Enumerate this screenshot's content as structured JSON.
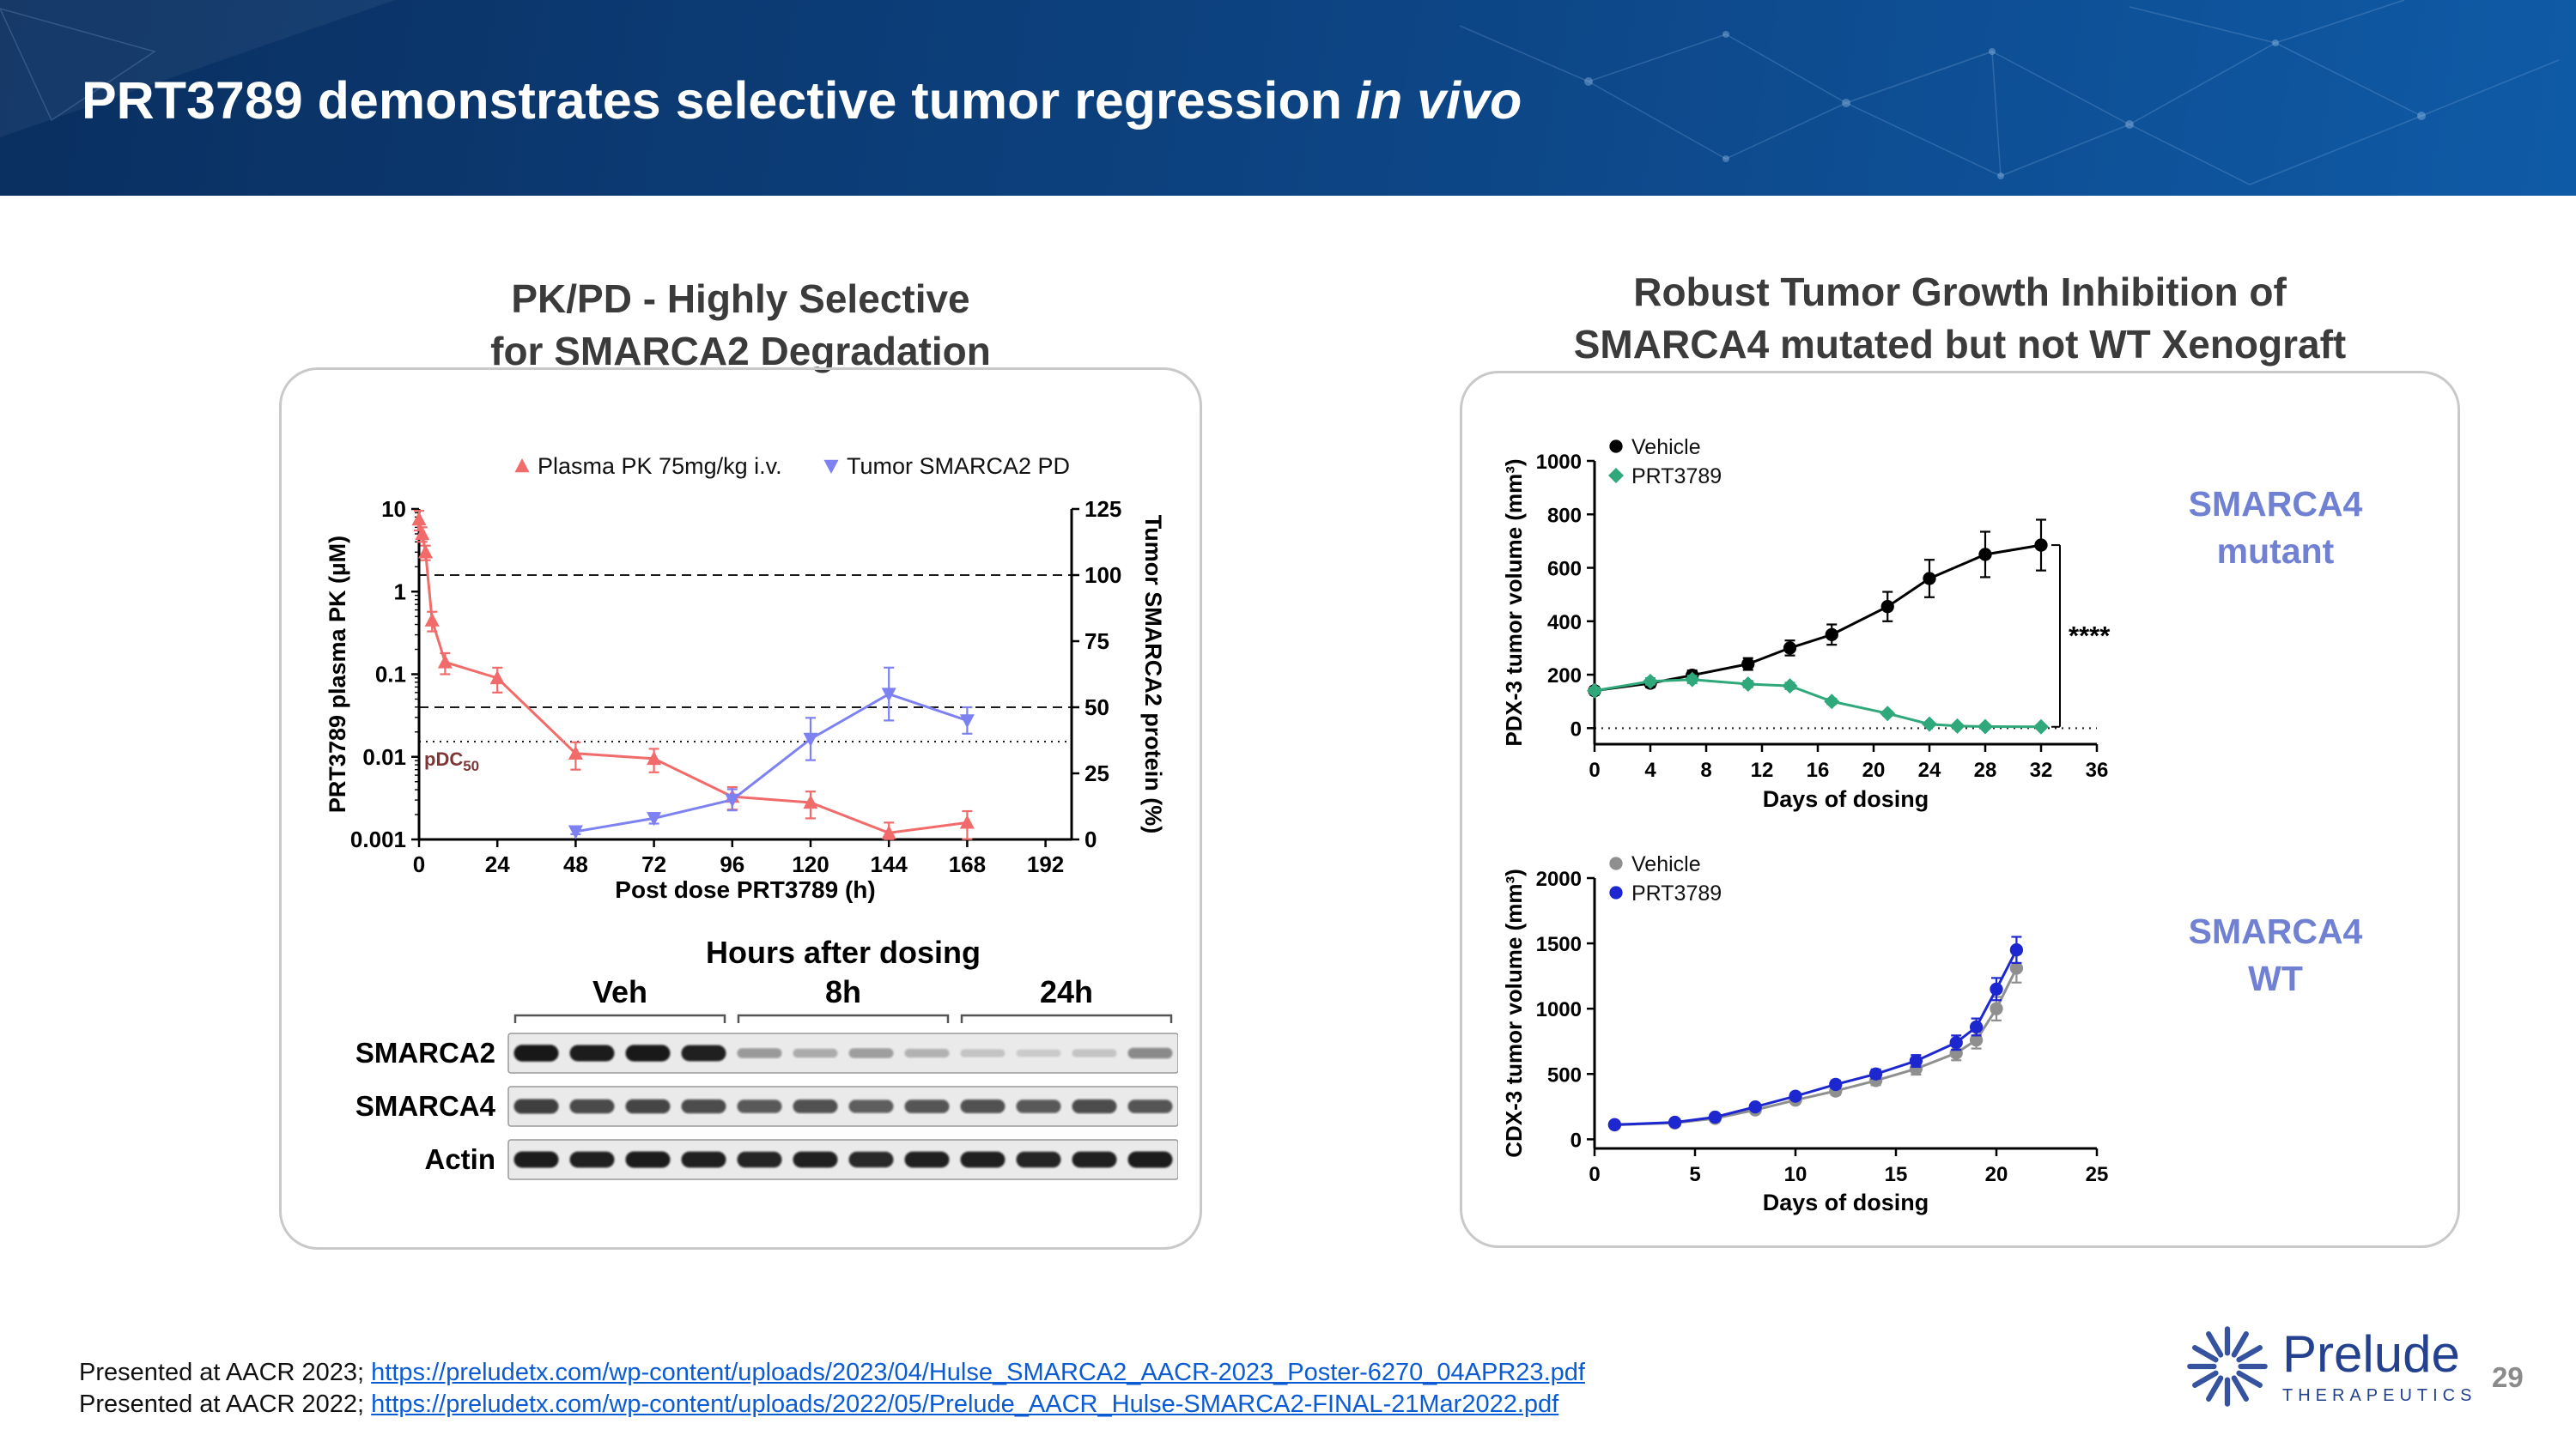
{
  "slide": {
    "title_main": "PRT3789 demonstrates selective tumor regression",
    "title_italic": "in vivo",
    "page_number": "29"
  },
  "left_panel": {
    "title_line1": "PK/PD - Highly Selective",
    "title_line2": "for SMARCA2 Degradation",
    "blot": {
      "heading": "Hours after dosing",
      "groups": [
        "Veh",
        "8h",
        "24h"
      ],
      "rows": [
        {
          "label": "SMARCA2",
          "bands": [
            0.95,
            0.92,
            0.93,
            0.9,
            0.3,
            0.22,
            0.28,
            0.18,
            0.1,
            0.07,
            0.1,
            0.38
          ]
        },
        {
          "label": "SMARCA4",
          "bands": [
            0.75,
            0.7,
            0.72,
            0.68,
            0.62,
            0.66,
            0.6,
            0.64,
            0.66,
            0.62,
            0.68,
            0.64
          ]
        },
        {
          "label": "Actin",
          "bands": [
            0.92,
            0.9,
            0.92,
            0.9,
            0.88,
            0.9,
            0.86,
            0.9,
            0.9,
            0.88,
            0.9,
            0.92
          ]
        }
      ]
    }
  },
  "right_panel": {
    "title_line1": "Robust Tumor Growth Inhibition of",
    "title_line2": "SMARCA4 mutated but not WT Xenograft",
    "label_mutant_line1": "SMARCA4",
    "label_mutant_line2": "mutant",
    "label_wt_line1": "SMARCA4",
    "label_wt_line2": "WT"
  },
  "footer": {
    "line1_prefix": "Presented at AACR 2023; ",
    "line1_link": "https://preludetx.com/wp-content/uploads/2023/04/Hulse_SMARCA2_AACR-2023_Poster-6270_04APR23.pdf",
    "line2_prefix": "Presented at AACR 2022; ",
    "line2_link": "https://preludetx.com/wp-content/uploads/2022/05/Prelude_AACR_Hulse-SMARCA2-FINAL-21Mar2022.pdf"
  },
  "logo": {
    "name": "Prelude",
    "subtitle": "THERAPEUTICS"
  },
  "colors": {
    "header_navy": "#0d4585",
    "panel_label_blue": "#7080d2",
    "link_blue": "#0b5bd3",
    "pk_red": "#f26b6b",
    "pd_blue": "#7e81f2",
    "vehicle_black": "#000000",
    "prt_green": "#2fa87c",
    "vehicle_gray": "#8f8f8f",
    "prt_blue": "#1d27cf",
    "logo_blue": "#23418f"
  },
  "chart_data": [
    {
      "id": "pkpd",
      "type": "line",
      "title": "",
      "xlabel": "Post dose PRT3789 (h)",
      "xlim": [
        0,
        200
      ],
      "x_ticks": [
        0,
        24,
        48,
        72,
        96,
        120,
        144,
        168,
        192
      ],
      "left_axis": {
        "label": "PRT3789 plasma PK (µM)",
        "scale": "log",
        "lim": [
          0.001,
          10
        ],
        "ticks": [
          0.001,
          0.01,
          0.1,
          1,
          10
        ]
      },
      "right_axis": {
        "label": "Tumor SMARCA2 protein (%)",
        "scale": "linear",
        "lim": [
          0,
          125
        ],
        "ticks": [
          0,
          25,
          50,
          75,
          100,
          125
        ]
      },
      "ref_lines": [
        {
          "axis": "right",
          "value": 100,
          "style": "dashed"
        },
        {
          "axis": "right",
          "value": 50,
          "style": "dashed"
        },
        {
          "axis": "right",
          "value": 37,
          "style": "dotted",
          "label": "pDC50"
        }
      ],
      "legend_position": "top",
      "grid": false,
      "series": [
        {
          "name": "Plasma PK 75mg/kg i.v.",
          "axis": "left",
          "color": "#f26b6b",
          "marker": "triangle-up",
          "x": [
            0,
            1,
            2,
            4,
            8,
            24,
            48,
            72,
            96,
            120,
            144,
            168
          ],
          "y": [
            7.5,
            5,
            3,
            0.45,
            0.14,
            0.09,
            0.011,
            0.0095,
            0.0033,
            0.0028,
            0.0012,
            0.0016
          ],
          "err": [
            2,
            1,
            0.6,
            0.12,
            0.04,
            0.03,
            0.004,
            0.003,
            0.001,
            0.001,
            0.0004,
            0.0006
          ]
        },
        {
          "name": "Tumor SMARCA2 PD",
          "axis": "right",
          "color": "#7e81f2",
          "marker": "triangle-down",
          "x": [
            48,
            72,
            96,
            120,
            144,
            168
          ],
          "y": [
            3,
            8,
            15,
            38,
            55,
            45
          ],
          "err": [
            1,
            2,
            4,
            8,
            10,
            5
          ]
        }
      ]
    },
    {
      "id": "pdx",
      "type": "line",
      "title": "",
      "ylabel": "PDX-3 tumor volume (mm³)",
      "xlabel": "Days of dosing",
      "xlim": [
        0,
        36
      ],
      "x_ticks": [
        0,
        4,
        8,
        12,
        16,
        20,
        24,
        28,
        32,
        36
      ],
      "left_axis": {
        "scale": "linear",
        "lim": [
          -60,
          1000
        ],
        "ticks": [
          0,
          200,
          400,
          600,
          800,
          1000
        ]
      },
      "ref_lines": [
        {
          "axis": "left",
          "value": 0,
          "style": "dotted"
        }
      ],
      "annotation": "****",
      "legend_position": "top-left",
      "grid": false,
      "series": [
        {
          "name": "Vehicle",
          "color": "#000000",
          "marker": "circle",
          "x": [
            0,
            4,
            7,
            11,
            14,
            17,
            21,
            24,
            28,
            32
          ],
          "y": [
            140,
            168,
            198,
            240,
            300,
            350,
            455,
            560,
            650,
            685
          ],
          "err": [
            15,
            15,
            18,
            22,
            28,
            38,
            55,
            70,
            85,
            95
          ]
        },
        {
          "name": "PRT3789",
          "color": "#2fa87c",
          "marker": "diamond",
          "x": [
            0,
            4,
            7,
            11,
            14,
            17,
            21,
            24,
            26,
            28,
            32
          ],
          "y": [
            140,
            175,
            182,
            165,
            158,
            100,
            55,
            15,
            8,
            6,
            5
          ],
          "err": [
            12,
            12,
            14,
            12,
            12,
            10,
            8,
            4,
            3,
            2,
            2
          ]
        }
      ]
    },
    {
      "id": "cdx",
      "type": "line",
      "title": "",
      "ylabel": "CDX-3 tumor volume (mm³)",
      "xlabel": "Days of dosing",
      "xlim": [
        0,
        25
      ],
      "x_ticks": [
        0,
        5,
        10,
        15,
        20,
        25
      ],
      "left_axis": {
        "scale": "linear",
        "lim": [
          -70,
          2000
        ],
        "ticks": [
          0,
          500,
          1000,
          1500,
          2000
        ]
      },
      "legend_position": "top-left",
      "grid": false,
      "series": [
        {
          "name": "Vehicle",
          "color": "#8f8f8f",
          "marker": "circle",
          "x": [
            1,
            4,
            6,
            8,
            10,
            12,
            14,
            16,
            18,
            19,
            20,
            21
          ],
          "y": [
            110,
            125,
            160,
            225,
            300,
            370,
            450,
            540,
            660,
            760,
            1000,
            1310
          ],
          "err": [
            10,
            12,
            15,
            20,
            25,
            30,
            35,
            45,
            55,
            65,
            90,
            110
          ]
        },
        {
          "name": "PRT3789",
          "color": "#1d27cf",
          "marker": "circle",
          "x": [
            1,
            4,
            6,
            8,
            10,
            12,
            14,
            16,
            18,
            19,
            20,
            21
          ],
          "y": [
            112,
            130,
            170,
            248,
            330,
            420,
            500,
            600,
            740,
            860,
            1150,
            1450
          ],
          "err": [
            10,
            12,
            15,
            20,
            25,
            30,
            35,
            45,
            55,
            65,
            85,
            100
          ]
        }
      ]
    }
  ]
}
